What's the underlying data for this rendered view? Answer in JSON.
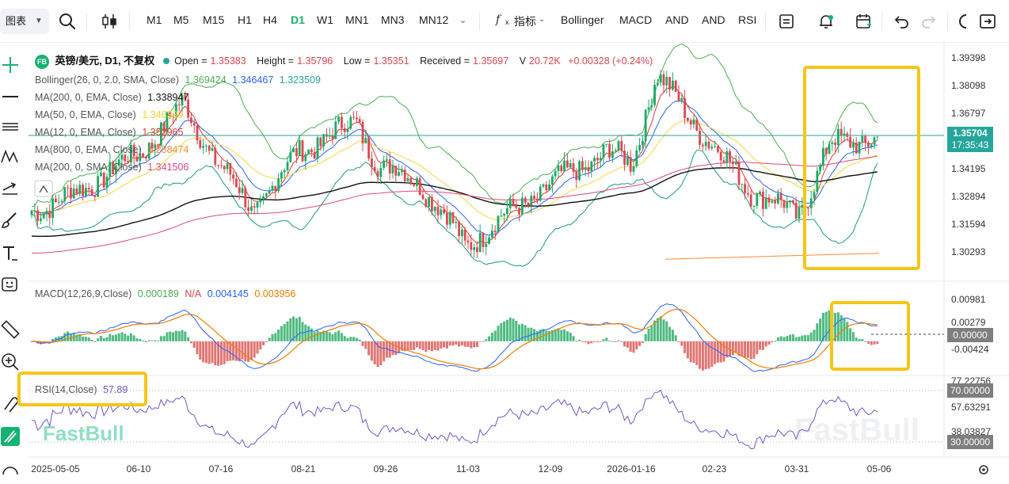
{
  "toolbar": {
    "chart_label": "图表",
    "periods": [
      "M1",
      "M5",
      "M15",
      "H1",
      "H4",
      "D1",
      "W1",
      "MN1",
      "MN3",
      "MN12"
    ],
    "active_period": "D1",
    "indicator_label": "指标",
    "indicators": [
      "Bollinger",
      "MACD",
      "AND",
      "AND",
      "RSI"
    ]
  },
  "legend": {
    "symbol_badge": "FB",
    "title": "英镑/美元, D1, 不复权",
    "open_label": "Open =",
    "open": "1.35383",
    "high_label": "Height =",
    "high": "1.35796",
    "low_label": "Low =",
    "low": "1.35351",
    "close_label": "Received =",
    "close": "1.35697",
    "volume_label": "V",
    "volume": "20.72K",
    "change": "+0.00328 (+0.24%)",
    "bollinger_label": "Bollinger(26, 0, 2.0, SMA, Close)",
    "bollinger_values": [
      "1.369424",
      "1.346467",
      "1.323509"
    ],
    "ma1_label": "MA(200, 0, EMA, Close)",
    "ma1_value": "1.338947",
    "ma2_label": "MA(50, 0, EMA, Close)",
    "ma2_value": "1.346339",
    "ma3_label": "MA(12, 0, EMA, Close)",
    "ma3_value": "1.352965",
    "ma4_label": "MA(800, 0, EMA, Close)",
    "ma4_value": "1.288474",
    "ma5_label": "MA(200, 0, SMA, Close)",
    "ma5_value": "1.341506"
  },
  "macd_legend": {
    "label": "MACD(12,26,9,Close)",
    "values": [
      "0.000189",
      "N/A",
      "0.004145",
      "0.003956"
    ]
  },
  "rsi_legend": {
    "label": "RSI(14,Close)",
    "value": "57.89"
  },
  "price_axis": [
    "1.39398",
    "1.38098",
    "1.36797",
    "1.35704",
    "1.34195",
    "1.32894",
    "1.31594",
    "1.30293"
  ],
  "price_tag": {
    "price": "1.35704",
    "timer": "17:35:43"
  },
  "macd_axis": [
    "0.00981",
    "0.00279",
    "0.00000",
    "-0.00424"
  ],
  "rsi_axis": [
    "77.22756",
    "70.00000",
    "57.63291",
    "38.03827",
    "30.00000"
  ],
  "watermark": "FastBull",
  "watermark_faded": "FastBull",
  "colors": {
    "up": "#26a69a",
    "up_candle": "#1aab65",
    "down": "#e0464f",
    "boll": "#4caf50",
    "ema200": "#111111",
    "ema50": "#f5d742",
    "ema12": "#e53935",
    "ema800": "#ff8a30",
    "sma200": "#e0457a",
    "macd_line": "#2962ff",
    "signal_line": "#f57c00",
    "rsi": "#6a5acd",
    "highlight": "#f5c518"
  },
  "chart_data": {
    "type": "candlestick",
    "symbol": "英镑/美元",
    "timeframe": "D1",
    "x_tick_labels": [
      "2025-05-05",
      "06-10",
      "07-16",
      "08-21",
      "09-26",
      "11-03",
      "12-09",
      "2026-01-16",
      "02-23",
      "03-31",
      "05-06"
    ],
    "ylim": [
      1.298,
      1.397
    ],
    "last_close": 1.35704,
    "key_points": [
      {
        "date": "2025-05-05",
        "close": 1.325
      },
      {
        "date": "2025-06-10",
        "close": 1.348
      },
      {
        "date": "2025-07-01",
        "close": 1.372
      },
      {
        "date": "2025-07-16",
        "close": 1.345
      },
      {
        "date": "2025-08-01",
        "close": 1.322
      },
      {
        "date": "2025-08-21",
        "close": 1.35
      },
      {
        "date": "2025-09-16",
        "close": 1.364
      },
      {
        "date": "2025-09-26",
        "close": 1.343
      },
      {
        "date": "2025-10-14",
        "close": 1.336
      },
      {
        "date": "2025-11-03",
        "close": 1.306
      },
      {
        "date": "2025-12-09",
        "close": 1.333
      },
      {
        "date": "2026-01-05",
        "close": 1.35
      },
      {
        "date": "2026-01-16",
        "close": 1.344
      },
      {
        "date": "2026-01-27",
        "close": 1.386
      },
      {
        "date": "2026-02-23",
        "close": 1.35
      },
      {
        "date": "2026-03-10",
        "close": 1.332
      },
      {
        "date": "2026-03-31",
        "close": 1.32
      },
      {
        "date": "2026-04-14",
        "close": 1.353
      },
      {
        "date": "2026-05-06",
        "close": 1.357
      }
    ],
    "macd": {
      "macd": 0.000189,
      "macd_line": 0.004145,
      "signal": 0.003956,
      "ylim": [
        -0.0065,
        0.011
      ]
    },
    "rsi": {
      "value": 57.89,
      "levels": [
        30,
        70
      ],
      "ylim": [
        22,
        82
      ]
    }
  }
}
